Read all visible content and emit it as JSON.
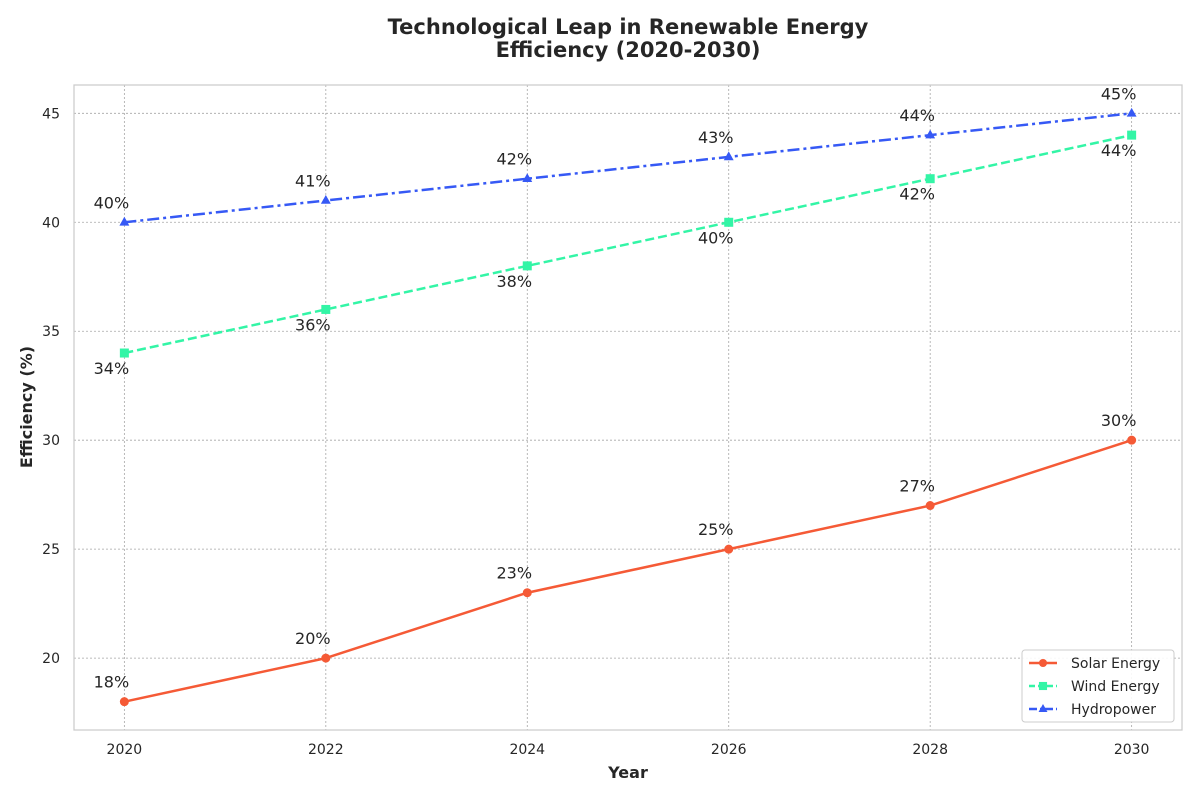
{
  "chart_data": {
    "type": "line",
    "title": "Technological Leap in Renewable Energy Efficiency (2020-2030)",
    "title_lines": [
      "Technological Leap in Renewable Energy",
      "Efficiency (2020-2030)"
    ],
    "xlabel": "Year",
    "ylabel": "Efficiency (%)",
    "x": [
      2020,
      2022,
      2024,
      2026,
      2028,
      2030
    ],
    "xlim": [
      2019.5,
      2030.5
    ],
    "ylim": [
      16.7,
      46.3
    ],
    "xticks": [
      "2020",
      "2022",
      "2024",
      "2026",
      "2028",
      "2030"
    ],
    "yticks": [
      "20",
      "25",
      "30",
      "35",
      "40",
      "45"
    ],
    "grid": true,
    "legend_position": "lower-right",
    "series": [
      {
        "name": "Solar Energy",
        "values": [
          18,
          20,
          23,
          25,
          27,
          30
        ],
        "labels": [
          "18%",
          "20%",
          "23%",
          "25%",
          "27%",
          "30%"
        ],
        "color": "#f55a36",
        "line_style": "solid",
        "marker": "circle",
        "label_placement": "above"
      },
      {
        "name": "Wind Energy",
        "values": [
          34,
          36,
          38,
          40,
          42,
          44
        ],
        "labels": [
          "34%",
          "36%",
          "38%",
          "40%",
          "42%",
          "44%"
        ],
        "color": "#33f5a6",
        "line_style": "dashed",
        "marker": "square",
        "label_placement": "below"
      },
      {
        "name": "Hydropower",
        "values": [
          40,
          41,
          42,
          43,
          44,
          45
        ],
        "labels": [
          "40%",
          "41%",
          "42%",
          "43%",
          "44%",
          "45%"
        ],
        "color": "#3659f5",
        "line_style": "dash-dot",
        "marker": "triangle",
        "label_placement": "above"
      }
    ]
  }
}
